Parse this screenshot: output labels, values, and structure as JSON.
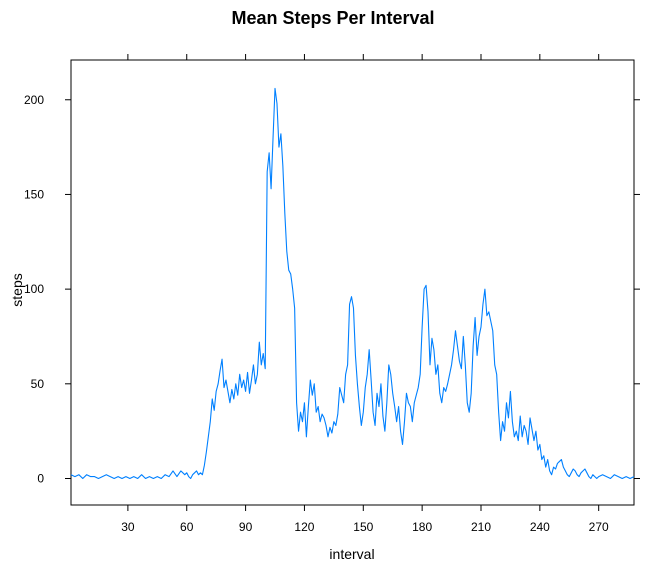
{
  "chart_data": {
    "type": "line",
    "title": "Mean Steps Per Interval",
    "xlabel": "interval",
    "ylabel": "steps",
    "xlim": [
      1,
      288
    ],
    "ylim": [
      -14,
      221
    ],
    "x_ticks": [
      30,
      60,
      90,
      120,
      150,
      180,
      210,
      240,
      270
    ],
    "y_ticks": [
      0,
      50,
      100,
      150,
      200
    ],
    "grid": false,
    "line_color": "#0080ff",
    "series": [
      {
        "points": [
          [
            1,
            2
          ],
          [
            3,
            1
          ],
          [
            5,
            2
          ],
          [
            7,
            0
          ],
          [
            9,
            2
          ],
          [
            11,
            1
          ],
          [
            13,
            1
          ],
          [
            15,
            0
          ],
          [
            17,
            1
          ],
          [
            19,
            2
          ],
          [
            21,
            1
          ],
          [
            23,
            0
          ],
          [
            25,
            1
          ],
          [
            27,
            0
          ],
          [
            29,
            1
          ],
          [
            31,
            0
          ],
          [
            33,
            1
          ],
          [
            35,
            0
          ],
          [
            37,
            2
          ],
          [
            39,
            0
          ],
          [
            41,
            1
          ],
          [
            43,
            0
          ],
          [
            45,
            1
          ],
          [
            47,
            0
          ],
          [
            49,
            2
          ],
          [
            51,
            1
          ],
          [
            53,
            4
          ],
          [
            55,
            1
          ],
          [
            57,
            4
          ],
          [
            59,
            2
          ],
          [
            60,
            3
          ],
          [
            61,
            1
          ],
          [
            62,
            0
          ],
          [
            63,
            2
          ],
          [
            64,
            3
          ],
          [
            65,
            4
          ],
          [
            66,
            2
          ],
          [
            67,
            3
          ],
          [
            68,
            2
          ],
          [
            69,
            7
          ],
          [
            70,
            14
          ],
          [
            71,
            22
          ],
          [
            72,
            30
          ],
          [
            73,
            42
          ],
          [
            74,
            36
          ],
          [
            75,
            46
          ],
          [
            76,
            50
          ],
          [
            77,
            57
          ],
          [
            78,
            63
          ],
          [
            79,
            48
          ],
          [
            80,
            52
          ],
          [
            81,
            46
          ],
          [
            82,
            40
          ],
          [
            83,
            47
          ],
          [
            84,
            42
          ],
          [
            85,
            50
          ],
          [
            86,
            44
          ],
          [
            87,
            55
          ],
          [
            88,
            48
          ],
          [
            89,
            52
          ],
          [
            90,
            46
          ],
          [
            91,
            56
          ],
          [
            92,
            45
          ],
          [
            93,
            52
          ],
          [
            94,
            60
          ],
          [
            95,
            50
          ],
          [
            96,
            55
          ],
          [
            97,
            72
          ],
          [
            98,
            60
          ],
          [
            99,
            66
          ],
          [
            100,
            58
          ],
          [
            101,
            162
          ],
          [
            102,
            172
          ],
          [
            103,
            153
          ],
          [
            104,
            180
          ],
          [
            105,
            206
          ],
          [
            106,
            198
          ],
          [
            107,
            175
          ],
          [
            108,
            182
          ],
          [
            109,
            165
          ],
          [
            110,
            140
          ],
          [
            111,
            120
          ],
          [
            112,
            110
          ],
          [
            113,
            108
          ],
          [
            114,
            100
          ],
          [
            115,
            90
          ],
          [
            116,
            40
          ],
          [
            117,
            25
          ],
          [
            118,
            35
          ],
          [
            119,
            30
          ],
          [
            120,
            40
          ],
          [
            121,
            22
          ],
          [
            122,
            38
          ],
          [
            123,
            52
          ],
          [
            124,
            44
          ],
          [
            125,
            50
          ],
          [
            126,
            35
          ],
          [
            127,
            38
          ],
          [
            128,
            30
          ],
          [
            129,
            34
          ],
          [
            130,
            32
          ],
          [
            131,
            28
          ],
          [
            132,
            22
          ],
          [
            133,
            27
          ],
          [
            134,
            24
          ],
          [
            135,
            30
          ],
          [
            136,
            28
          ],
          [
            137,
            34
          ],
          [
            138,
            48
          ],
          [
            139,
            44
          ],
          [
            140,
            40
          ],
          [
            141,
            55
          ],
          [
            142,
            60
          ],
          [
            143,
            92
          ],
          [
            144,
            96
          ],
          [
            145,
            90
          ],
          [
            146,
            65
          ],
          [
            147,
            50
          ],
          [
            148,
            38
          ],
          [
            149,
            28
          ],
          [
            150,
            35
          ],
          [
            151,
            48
          ],
          [
            152,
            55
          ],
          [
            153,
            68
          ],
          [
            154,
            52
          ],
          [
            155,
            35
          ],
          [
            156,
            28
          ],
          [
            157,
            45
          ],
          [
            158,
            38
          ],
          [
            159,
            50
          ],
          [
            160,
            33
          ],
          [
            161,
            25
          ],
          [
            162,
            40
          ],
          [
            163,
            60
          ],
          [
            164,
            55
          ],
          [
            165,
            45
          ],
          [
            166,
            38
          ],
          [
            167,
            30
          ],
          [
            168,
            38
          ],
          [
            169,
            25
          ],
          [
            170,
            18
          ],
          [
            171,
            30
          ],
          [
            172,
            45
          ],
          [
            173,
            40
          ],
          [
            174,
            38
          ],
          [
            175,
            30
          ],
          [
            176,
            40
          ],
          [
            177,
            44
          ],
          [
            178,
            48
          ],
          [
            179,
            55
          ],
          [
            180,
            80
          ],
          [
            181,
            100
          ],
          [
            182,
            102
          ],
          [
            183,
            88
          ],
          [
            184,
            60
          ],
          [
            185,
            74
          ],
          [
            186,
            68
          ],
          [
            187,
            55
          ],
          [
            188,
            60
          ],
          [
            189,
            45
          ],
          [
            190,
            40
          ],
          [
            191,
            48
          ],
          [
            192,
            46
          ],
          [
            193,
            50
          ],
          [
            194,
            55
          ],
          [
            195,
            60
          ],
          [
            196,
            68
          ],
          [
            197,
            78
          ],
          [
            198,
            70
          ],
          [
            199,
            62
          ],
          [
            200,
            58
          ],
          [
            201,
            75
          ],
          [
            202,
            60
          ],
          [
            203,
            40
          ],
          [
            204,
            35
          ],
          [
            205,
            45
          ],
          [
            206,
            70
          ],
          [
            207,
            85
          ],
          [
            208,
            65
          ],
          [
            209,
            75
          ],
          [
            210,
            80
          ],
          [
            211,
            92
          ],
          [
            212,
            100
          ],
          [
            213,
            86
          ],
          [
            214,
            88
          ],
          [
            215,
            83
          ],
          [
            216,
            78
          ],
          [
            217,
            60
          ],
          [
            218,
            55
          ],
          [
            219,
            35
          ],
          [
            220,
            20
          ],
          [
            221,
            30
          ],
          [
            222,
            25
          ],
          [
            223,
            40
          ],
          [
            224,
            32
          ],
          [
            225,
            46
          ],
          [
            226,
            30
          ],
          [
            227,
            22
          ],
          [
            228,
            25
          ],
          [
            229,
            20
          ],
          [
            230,
            33
          ],
          [
            231,
            22
          ],
          [
            232,
            28
          ],
          [
            233,
            25
          ],
          [
            234,
            18
          ],
          [
            235,
            32
          ],
          [
            236,
            26
          ],
          [
            237,
            20
          ],
          [
            238,
            25
          ],
          [
            239,
            15
          ],
          [
            240,
            18
          ],
          [
            241,
            10
          ],
          [
            242,
            12
          ],
          [
            243,
            6
          ],
          [
            244,
            10
          ],
          [
            245,
            4
          ],
          [
            246,
            2
          ],
          [
            247,
            6
          ],
          [
            248,
            5
          ],
          [
            249,
            8
          ],
          [
            250,
            9
          ],
          [
            251,
            10
          ],
          [
            252,
            6
          ],
          [
            253,
            4
          ],
          [
            254,
            2
          ],
          [
            255,
            1
          ],
          [
            256,
            3
          ],
          [
            257,
            5
          ],
          [
            258,
            4
          ],
          [
            259,
            2
          ],
          [
            260,
            1
          ],
          [
            261,
            3
          ],
          [
            262,
            4
          ],
          [
            263,
            5
          ],
          [
            264,
            3
          ],
          [
            265,
            1
          ],
          [
            266,
            0
          ],
          [
            267,
            2
          ],
          [
            268,
            1
          ],
          [
            269,
            0
          ],
          [
            270,
            1
          ],
          [
            272,
            2
          ],
          [
            274,
            1
          ],
          [
            276,
            0
          ],
          [
            278,
            2
          ],
          [
            280,
            1
          ],
          [
            282,
            0
          ],
          [
            284,
            1
          ],
          [
            286,
            0
          ],
          [
            288,
            1
          ]
        ]
      }
    ]
  }
}
